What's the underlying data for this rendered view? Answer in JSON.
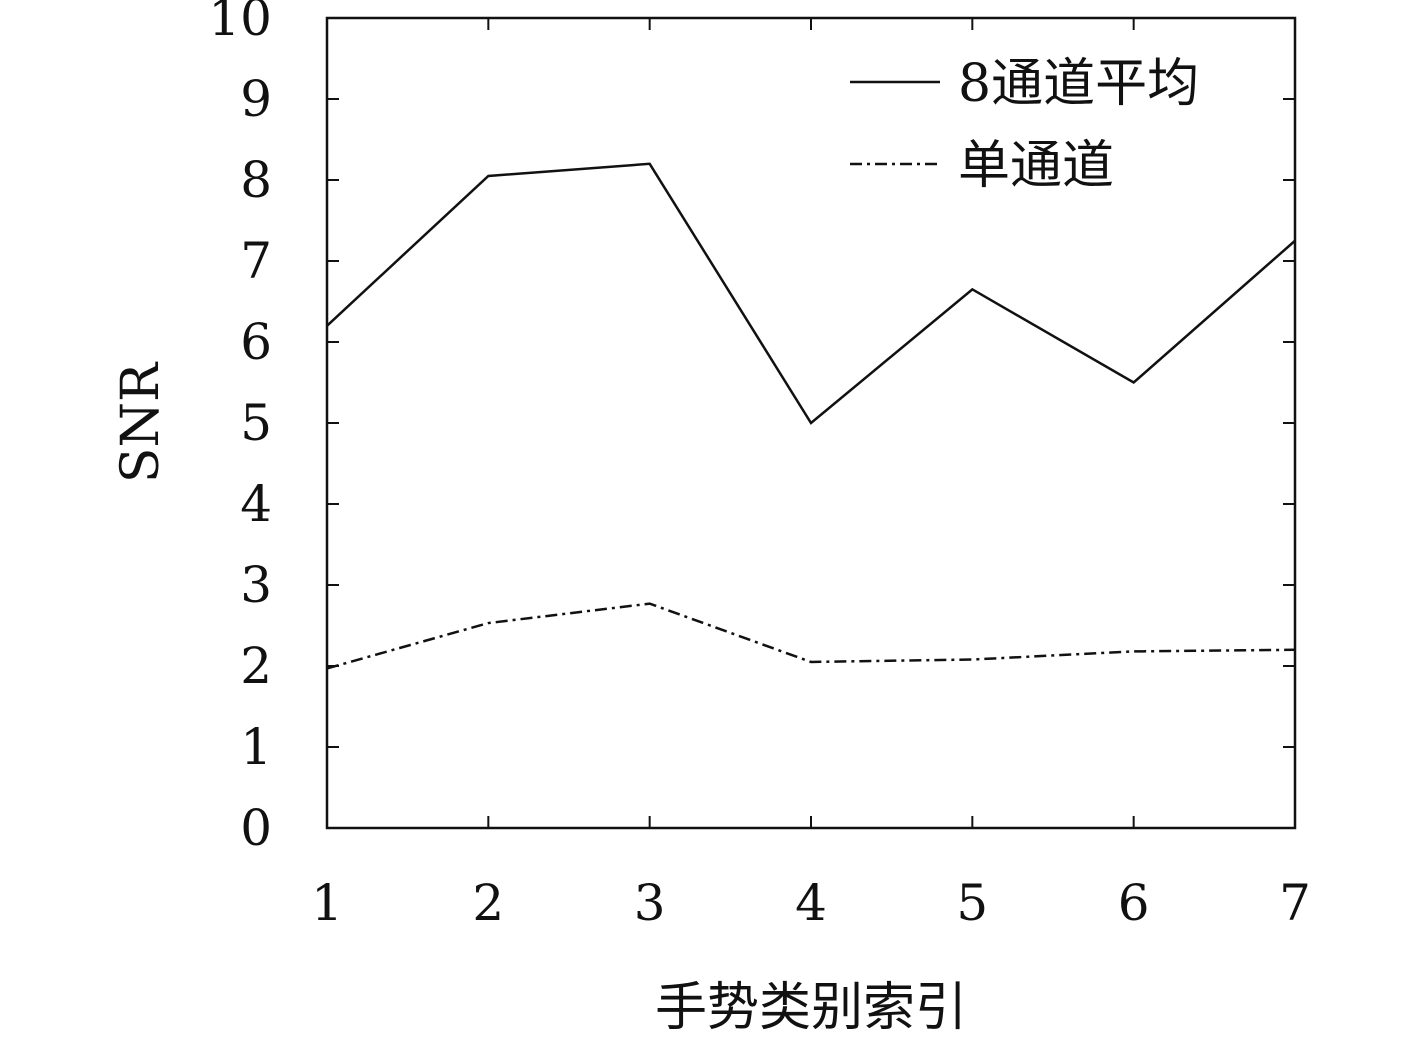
{
  "chart_data": {
    "type": "line",
    "title": "",
    "xlabel": "手势类别索引",
    "ylabel": "SNR",
    "x": [
      1,
      2,
      3,
      4,
      5,
      6,
      7
    ],
    "xlim": [
      1,
      7
    ],
    "ylim": [
      0,
      10
    ],
    "xticks": [
      "1",
      "2",
      "3",
      "4",
      "5",
      "6",
      "7"
    ],
    "yticks": [
      "0",
      "1",
      "2",
      "3",
      "4",
      "5",
      "6",
      "7",
      "8",
      "9",
      "10"
    ],
    "grid": false,
    "legend_position": "top-right",
    "series": [
      {
        "name": "8通道平均",
        "style": "solid",
        "color": "#111111",
        "values": [
          6.2,
          8.05,
          8.2,
          5.0,
          6.65,
          5.5,
          7.25
        ]
      },
      {
        "name": "单通道",
        "style": "dash-dot",
        "color": "#111111",
        "values": [
          1.97,
          2.53,
          2.77,
          2.05,
          2.08,
          2.18,
          2.2
        ]
      }
    ]
  }
}
